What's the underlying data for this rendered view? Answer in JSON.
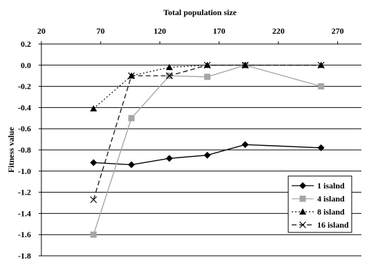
{
  "chart_data": {
    "type": "line",
    "title": "",
    "xlabel": "Total population size",
    "ylabel": "Fitness value",
    "xlim": [
      20,
      290
    ],
    "ylim": [
      -1.8,
      0.2
    ],
    "x_ticks": [
      20,
      70,
      120,
      170,
      220,
      270
    ],
    "y_ticks": [
      0.2,
      0.0,
      -0.2,
      -0.4,
      -0.6,
      -0.8,
      -1.0,
      -1.2,
      -1.4,
      -1.6,
      -1.8
    ],
    "x_tick_labels": [
      "20",
      "70",
      "120",
      "170",
      "220",
      "270"
    ],
    "y_tick_labels": [
      "0.2",
      "0.0",
      "-0.2",
      "-0.4",
      "-0.6",
      "-0.8",
      "-1.0",
      "-1.2",
      "-1.4",
      "-1.6",
      "-1.8"
    ],
    "x_axis_position": "top",
    "grid": "horizontal",
    "legend_position": "bottom-right",
    "series": [
      {
        "name": "1 isalnd",
        "marker": "diamond",
        "color": "#000000",
        "dash": "solid",
        "x": [
          64,
          96,
          128,
          160,
          192,
          256
        ],
        "values": [
          -0.92,
          -0.94,
          -0.88,
          -0.85,
          -0.75,
          -0.78
        ]
      },
      {
        "name": "4 island",
        "marker": "square",
        "color": "#a6a6a6",
        "dash": "solid",
        "x": [
          64,
          96,
          128,
          160,
          192,
          256
        ],
        "values": [
          -1.6,
          -0.5,
          -0.1,
          -0.11,
          0.0,
          -0.2
        ]
      },
      {
        "name": "8 island",
        "marker": "triangle",
        "color": "#000000",
        "dash": "dotted",
        "x": [
          64,
          96,
          128,
          160,
          192,
          256
        ],
        "values": [
          -0.41,
          -0.1,
          -0.02,
          0.0,
          0.0,
          0.0
        ]
      },
      {
        "name": "16 island",
        "marker": "x",
        "color": "#000000",
        "dash": "dashed",
        "x": [
          64,
          96,
          128,
          160,
          192,
          256
        ],
        "values": [
          -1.27,
          -0.1,
          -0.1,
          0.0,
          0.0,
          0.0
        ]
      }
    ]
  }
}
